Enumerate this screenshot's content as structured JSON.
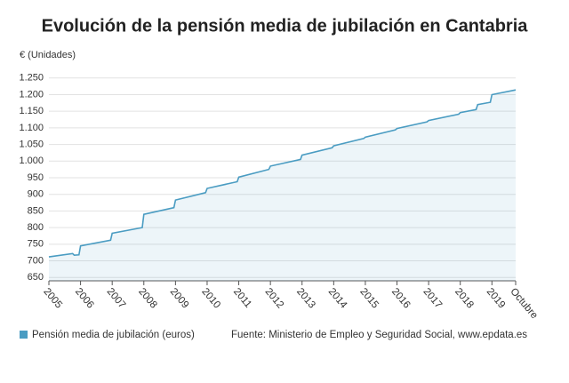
{
  "chart_data": {
    "type": "line",
    "title": "Evolución de la pensión media de jubilación en Cantabria",
    "y_label": "€ (Unidades)",
    "source": "Fuente: Ministerio de Empleo y Seguridad Social, www.epdata.es",
    "x": [
      2005,
      2005.75,
      2005.8,
      2005.95,
      2006,
      2006.95,
      2007,
      2007.95,
      2008,
      2008.95,
      2009,
      2009.95,
      2010,
      2010.95,
      2011,
      2011.95,
      2012,
      2012.95,
      2013,
      2013.95,
      2014,
      2014.95,
      2015,
      2015.95,
      2016,
      2016.95,
      2017,
      2017.95,
      2018,
      2018.5,
      2018.55,
      2018.95,
      2019,
      2019.75
    ],
    "series": [
      {
        "name": "Pensión media de jubilación (euros)",
        "color": "#4a9cc2",
        "values": [
          712,
          722,
          717,
          718,
          745,
          762,
          783,
          800,
          840,
          860,
          883,
          905,
          918,
          938,
          952,
          975,
          985,
          1005,
          1018,
          1040,
          1046,
          1068,
          1072,
          1094,
          1098,
          1118,
          1122,
          1141,
          1146,
          1155,
          1170,
          1177,
          1200,
          1214
        ]
      }
    ],
    "xlim": [
      2005,
      2019.75
    ],
    "xticks": [
      2005,
      2006,
      2007,
      2008,
      2009,
      2010,
      2011,
      2012,
      2013,
      2014,
      2015,
      2016,
      2017,
      2018,
      2019,
      {
        "value": 2019.75,
        "label": "Octubre"
      }
    ],
    "ylim": [
      640,
      1260
    ],
    "yticks": [
      650,
      700,
      750,
      800,
      850,
      900,
      950,
      {
        "value": 1000,
        "label": "1.000"
      },
      {
        "value": 1050,
        "label": "1.050"
      },
      {
        "value": 1100,
        "label": "1.100"
      },
      {
        "value": 1150,
        "label": "1.150"
      },
      {
        "value": 1200,
        "label": "1.200"
      },
      {
        "value": 1250,
        "label": "1.250"
      }
    ],
    "grid": true
  }
}
